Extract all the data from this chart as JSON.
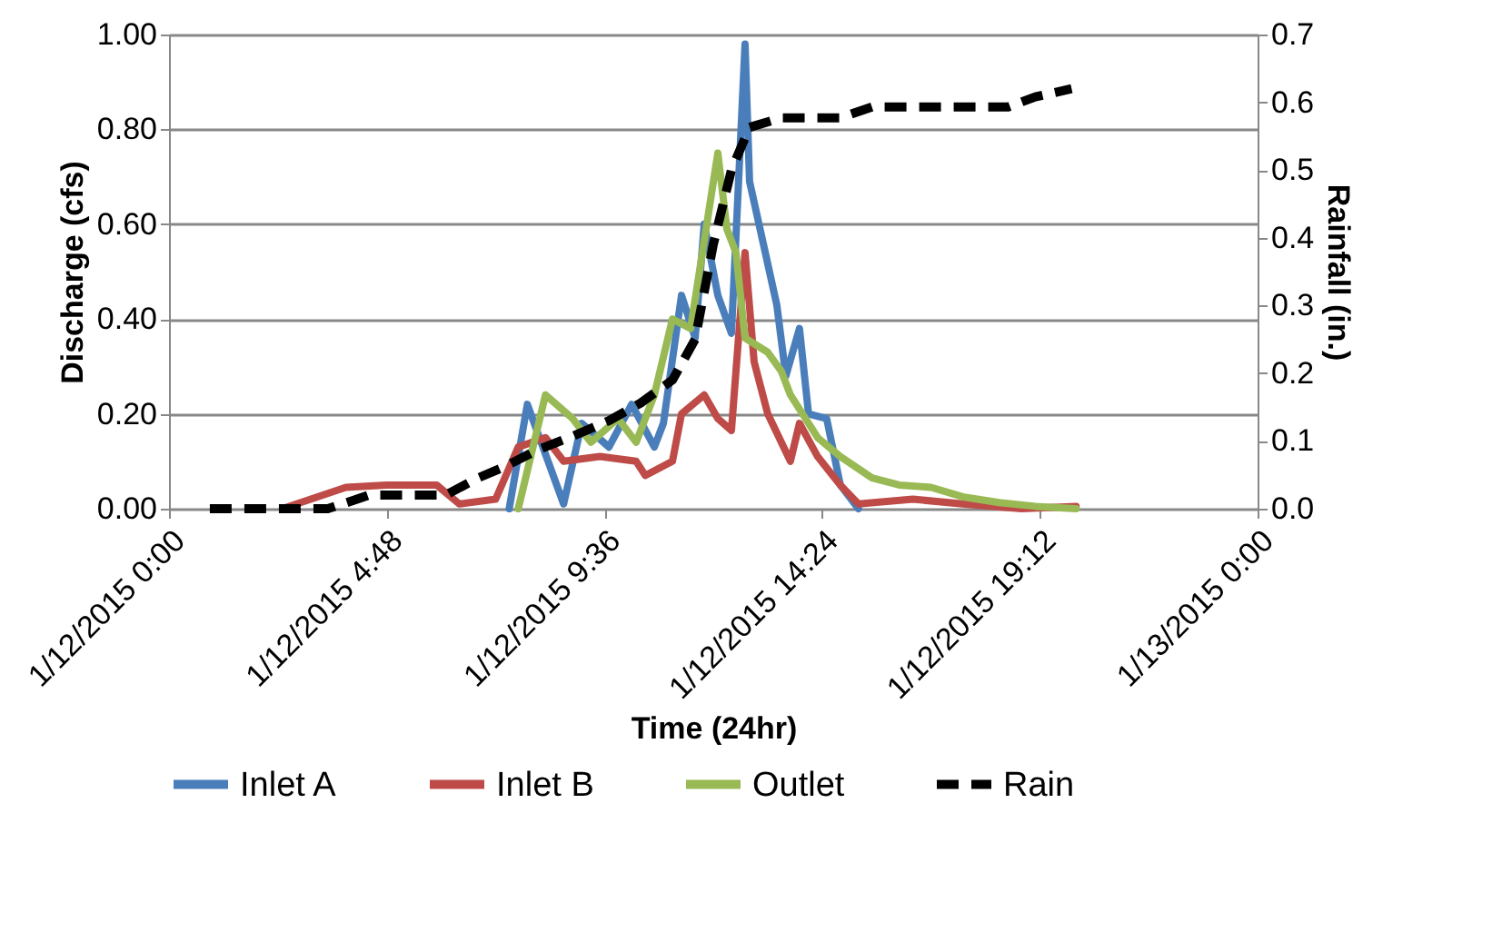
{
  "chart_data": {
    "type": "line",
    "xlabel": "Time (24hr)",
    "ylabel": "Discharge (cfs)",
    "y2label": "Rainfall (in.)",
    "xlim": [
      "2015-01-12T00:00",
      "2015-01-13T00:00"
    ],
    "xticks": [
      {
        "value": "2015-01-12T00:00",
        "label": "1/12/2015 0:00"
      },
      {
        "value": "2015-01-12T04:48",
        "label": "1/12/2015 4:48"
      },
      {
        "value": "2015-01-12T09:36",
        "label": "1/12/2015 9:36"
      },
      {
        "value": "2015-01-12T14:24",
        "label": "1/12/2015 14:24"
      },
      {
        "value": "2015-01-12T19:12",
        "label": "1/12/2015 19:12"
      },
      {
        "value": "2015-01-13T00:00",
        "label": "1/13/2015 0:00"
      }
    ],
    "ylim": [
      0,
      1
    ],
    "yticks": [
      {
        "value": 0,
        "label": "0.00"
      },
      {
        "value": 0.2,
        "label": "0.20"
      },
      {
        "value": 0.4,
        "label": "0.40"
      },
      {
        "value": 0.6,
        "label": "0.60"
      },
      {
        "value": 0.8,
        "label": "0.80"
      },
      {
        "value": 1,
        "label": "1.00"
      }
    ],
    "y2lim": [
      0,
      0.7
    ],
    "y2ticks": [
      {
        "value": 0,
        "label": "0.0"
      },
      {
        "value": 0.1,
        "label": "0.1"
      },
      {
        "value": 0.2,
        "label": "0.2"
      },
      {
        "value": 0.3,
        "label": "0.3"
      },
      {
        "value": 0.4,
        "label": "0.4"
      },
      {
        "value": 0.5,
        "label": "0.5"
      },
      {
        "value": 0.6,
        "label": "0.6"
      },
      {
        "value": 0.7,
        "label": "0.7"
      }
    ],
    "grid": "y",
    "legend": "bottom",
    "series": [
      {
        "name": "Inlet A",
        "color": "#4a7ebb",
        "line_style": "solid",
        "x": [
          "2015-01-12T07:30",
          "2015-01-12T07:54",
          "2015-01-12T08:42",
          "2015-01-12T09:06",
          "2015-01-12T09:42",
          "2015-01-12T10:12",
          "2015-01-12T10:42",
          "2015-01-12T10:54",
          "2015-01-12T11:18",
          "2015-01-12T11:36",
          "2015-01-12T11:48",
          "2015-01-12T12:06",
          "2015-01-12T12:24",
          "2015-01-12T12:42",
          "2015-01-12T12:48",
          "2015-01-12T13:06",
          "2015-01-12T13:24",
          "2015-01-12T13:36",
          "2015-01-12T13:54",
          "2015-01-12T14:06",
          "2015-01-12T14:30",
          "2015-01-12T14:48",
          "2015-01-12T15:12"
        ],
        "values": [
          0,
          0.22,
          0.01,
          0.18,
          0.13,
          0.22,
          0.13,
          0.18,
          0.45,
          0.36,
          0.6,
          0.45,
          0.37,
          0.98,
          0.69,
          0.56,
          0.43,
          0.28,
          0.38,
          0.2,
          0.19,
          0.05,
          0
        ]
      },
      {
        "name": "Inlet B",
        "color": "#be4b48",
        "line_style": "solid",
        "x": [
          "2015-01-12T02:30",
          "2015-01-12T03:54",
          "2015-01-12T04:48",
          "2015-01-12T05:54",
          "2015-01-12T06:24",
          "2015-01-12T07:12",
          "2015-01-12T07:42",
          "2015-01-12T08:18",
          "2015-01-12T08:42",
          "2015-01-12T09:30",
          "2015-01-12T10:18",
          "2015-01-12T10:30",
          "2015-01-12T11:06",
          "2015-01-12T11:18",
          "2015-01-12T11:48",
          "2015-01-12T12:06",
          "2015-01-12T12:24",
          "2015-01-12T12:42",
          "2015-01-12T12:54",
          "2015-01-12T13:12",
          "2015-01-12T13:42",
          "2015-01-12T13:54",
          "2015-01-12T14:18",
          "2015-01-12T14:48",
          "2015-01-12T15:12",
          "2015-01-12T16:24",
          "2015-01-12T17:30",
          "2015-01-12T18:48",
          "2015-01-12T20:00"
        ],
        "values": [
          0,
          0.045,
          0.05,
          0.05,
          0.01,
          0.02,
          0.13,
          0.15,
          0.1,
          0.11,
          0.1,
          0.07,
          0.1,
          0.2,
          0.24,
          0.19,
          0.165,
          0.54,
          0.31,
          0.2,
          0.1,
          0.18,
          0.11,
          0.05,
          0.01,
          0.02,
          0.01,
          0,
          0.005
        ]
      },
      {
        "name": "Outlet",
        "color": "#98b954",
        "line_style": "solid",
        "x": [
          "2015-01-12T07:42",
          "2015-01-12T08:18",
          "2015-01-12T08:54",
          "2015-01-12T09:18",
          "2015-01-12T09:54",
          "2015-01-12T10:18",
          "2015-01-12T10:42",
          "2015-01-12T11:06",
          "2015-01-12T11:30",
          "2015-01-12T12:06",
          "2015-01-12T12:18",
          "2015-01-12T12:30",
          "2015-01-12T12:42",
          "2015-01-12T13:12",
          "2015-01-12T13:30",
          "2015-01-12T13:42",
          "2015-01-12T14:18",
          "2015-01-12T14:48",
          "2015-01-12T15:30",
          "2015-01-12T16:06",
          "2015-01-12T16:48",
          "2015-01-12T17:30",
          "2015-01-12T18:18",
          "2015-01-12T19:06",
          "2015-01-12T20:00"
        ],
        "values": [
          0,
          0.24,
          0.19,
          0.14,
          0.19,
          0.14,
          0.24,
          0.4,
          0.38,
          0.75,
          0.59,
          0.54,
          0.36,
          0.33,
          0.29,
          0.24,
          0.15,
          0.11,
          0.065,
          0.05,
          0.045,
          0.025,
          0.013,
          0.005,
          0
        ]
      },
      {
        "name": "Rain",
        "color": "#000000",
        "line_style": "dashed",
        "axis": "y2",
        "x": [
          "2015-01-12T00:54",
          "2015-01-12T03:30",
          "2015-01-12T04:06",
          "2015-01-12T04:24",
          "2015-01-12T06:06",
          "2015-01-12T06:48",
          "2015-01-12T07:24",
          "2015-01-12T08:06",
          "2015-01-12T08:54",
          "2015-01-12T09:42",
          "2015-01-12T10:24",
          "2015-01-12T11:06",
          "2015-01-12T11:36",
          "2015-01-12T12:00",
          "2015-01-12T12:24",
          "2015-01-12T12:48",
          "2015-01-12T13:30",
          "2015-01-12T14:48",
          "2015-01-12T15:30",
          "2015-01-12T18:30",
          "2015-01-12T19:06",
          "2015-01-12T19:54"
        ],
        "values": [
          0,
          0,
          0.013,
          0.02,
          0.02,
          0.045,
          0.062,
          0.086,
          0.107,
          0.13,
          0.156,
          0.19,
          0.25,
          0.39,
          0.5,
          0.563,
          0.577,
          0.577,
          0.593,
          0.593,
          0.608,
          0.62
        ]
      }
    ]
  }
}
